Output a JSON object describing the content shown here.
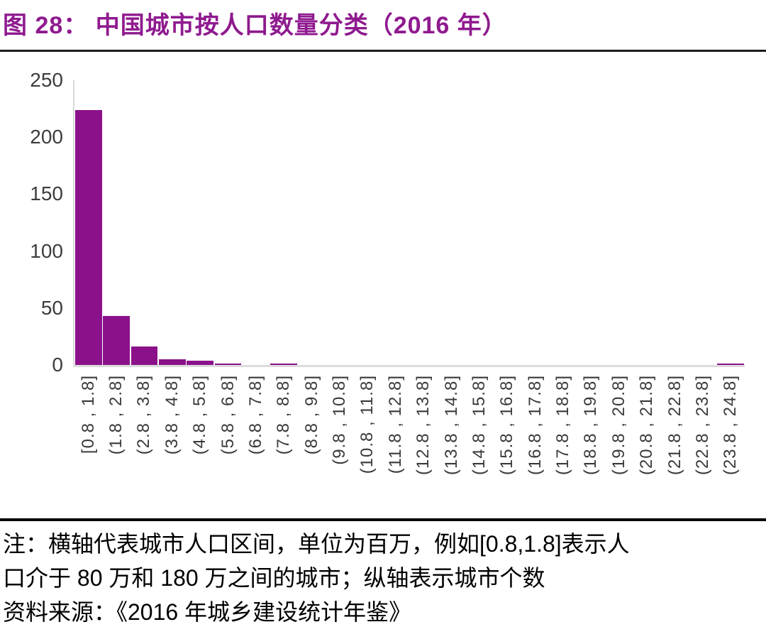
{
  "header": {
    "title": "图 28：  中国城市按人口数量分类（2016 年）"
  },
  "chart_data": {
    "type": "bar",
    "title": "中国城市按人口数量分类（2016 年）",
    "categories": [
      "[0.8 , 1.8]",
      "(1.8 , 2.8]",
      "(2.8 , 3.8]",
      "(3.8 , 4.8]",
      "(4.8 , 5.8]",
      "(5.8 , 6.8]",
      "(6.8 , 7.8]",
      "(7.8 , 8.8]",
      "(8.8 , 9.8]",
      "(9.8 , 10.8]",
      "(10.8 , 11.8]",
      "(11.8 , 12.8]",
      "(12.8 , 13.8]",
      "(13.8 , 14.8]",
      "(14.8 , 15.8]",
      "(15.8 , 16.8]",
      "(16.8 , 17.8]",
      "(17.8 , 18.8]",
      "(18.8 , 19.8]",
      "(19.8 , 20.8]",
      "(20.8 , 21.8]",
      "(21.8 , 22.8]",
      "(22.8 , 23.8]",
      "(23.8 , 24.8]"
    ],
    "values": [
      224,
      43,
      16,
      5,
      4,
      1,
      0,
      1,
      0,
      0,
      0,
      0,
      0,
      0,
      0,
      0,
      0,
      0,
      0,
      0,
      0,
      0,
      0,
      1
    ],
    "ylim": [
      0,
      250
    ],
    "yticks": [
      0,
      50,
      100,
      150,
      200,
      250
    ],
    "bar_color": "#8B118B",
    "grid": false,
    "legend_position": "none",
    "x_tick_rotation": 90
  },
  "note": {
    "lines": [
      "注：横轴代表城市人口区间，单位为百万，例如[0.8,1.8]表示人",
      "口介于 80 万和 180 万之间的城市；纵轴表示城市个数",
      "资料来源：《2016 年城乡建设统计年鉴》"
    ]
  },
  "colors": {
    "title": "#8F1A8F",
    "bar": "#8B118B",
    "axis_line": "#D9D9D9",
    "tick_label": "#3d3d3d",
    "rule_top": "#1c1c1c",
    "rule_bottom": "#000000"
  }
}
